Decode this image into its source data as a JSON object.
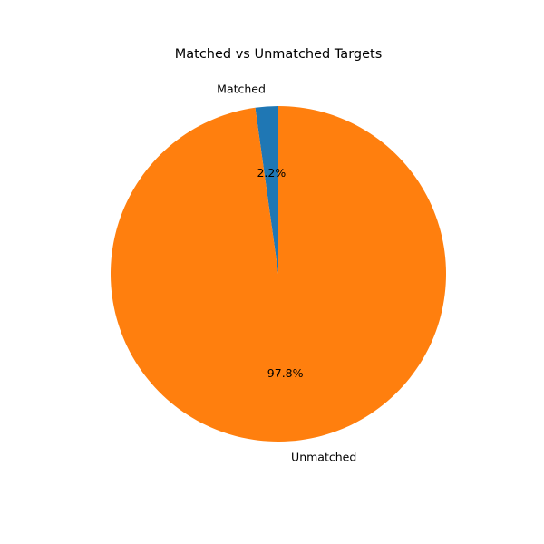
{
  "chart_data": {
    "type": "pie",
    "title": "Matched vs Unmatched Targets",
    "categories": [
      "Matched",
      "Unmatched"
    ],
    "values": [
      2.2,
      97.8
    ],
    "percent_labels": [
      "2.2%",
      "97.8%"
    ],
    "colors": [
      "#1f77b4",
      "#ff7f0e"
    ],
    "start_angle_deg": 90,
    "direction": "counterclockwise",
    "legend": "none"
  }
}
